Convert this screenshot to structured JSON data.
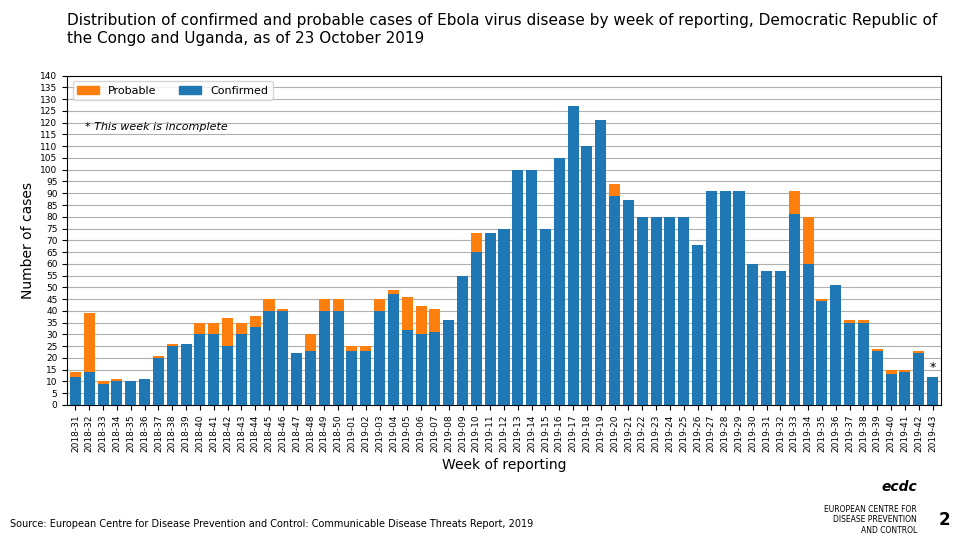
{
  "chart_data": {
    "type": "bar",
    "stacked": true,
    "title": "Distribution of confirmed and probable cases of Ebola virus disease by week of reporting, Democratic Republic of the Congo and Uganda, as of 23 October 2019",
    "x_label": "Week of reporting",
    "y_label": "Number of cases",
    "annotations": [
      "* This week is incomplete",
      "*",
      "Source: European Centre for Disease Prevention and Control: Communicable Disease Threats Report, 2019",
      "2",
      "ecdc",
      "EUROPEAN CENTRE FOR\nDISEASE PREVENTION\nAND CONTROL"
    ],
    "grid": true,
    "legend": "upper left",
    "ylim": [
      0,
      140
    ],
    "yticks": [
      0,
      5,
      10,
      15,
      20,
      25,
      30,
      35,
      40,
      45,
      50,
      55,
      60,
      65,
      70,
      75,
      80,
      85,
      90,
      95,
      100,
      105,
      110,
      115,
      120,
      125,
      130,
      135,
      140
    ],
    "categories": [
      "2018-31",
      "2018-32",
      "2018-33",
      "2018-34",
      "2018-35",
      "2018-36",
      "2018-37",
      "2018-38",
      "2018-39",
      "2018-40",
      "2018-41",
      "2018-42",
      "2018-43",
      "2018-44",
      "2018-45",
      "2018-46",
      "2018-47",
      "2018-48",
      "2018-49",
      "2018-50",
      "2019-01",
      "2019-02",
      "2019-03",
      "2019-04",
      "2019-05",
      "2019-06",
      "2019-07",
      "2019-08",
      "2019-09",
      "2019-10",
      "2019-11",
      "2019-12",
      "2019-13",
      "2019-14",
      "2019-15",
      "2019-16",
      "2019-17",
      "2019-18",
      "2019-19",
      "2019-20",
      "2019-21",
      "2019-22",
      "2019-23",
      "2019-24",
      "2019-25",
      "2019-26",
      "2019-27",
      "2019-28",
      "2019-29",
      "2019-30",
      "2019-31",
      "2019-32",
      "2019-33",
      "2019-34",
      "2019-35",
      "2019-36",
      "2019-37",
      "2019-38",
      "2019-39",
      "2019-40",
      "2019-41",
      "2019-42",
      "2019-43"
    ],
    "series": [
      {
        "name": "Confirmed",
        "values": [
          12,
          14,
          9,
          10,
          10,
          11,
          20,
          25,
          26,
          30,
          30,
          25,
          30,
          33,
          40,
          40,
          22,
          23,
          40,
          40,
          23,
          23,
          40,
          47,
          32,
          30,
          31,
          36,
          55,
          65,
          73,
          75,
          100,
          100,
          75,
          105,
          127,
          110,
          121,
          89,
          87,
          80,
          80,
          80,
          80,
          68,
          91,
          91,
          91,
          60,
          57,
          57,
          81,
          60,
          44,
          51,
          35,
          35,
          23,
          13,
          14,
          22,
          12
        ]
      },
      {
        "name": "Probable",
        "values": [
          2,
          25,
          1,
          1,
          0,
          0,
          1,
          1,
          0,
          5,
          5,
          12,
          5,
          5,
          5,
          1,
          0,
          7,
          5,
          5,
          2,
          2,
          5,
          2,
          14,
          12,
          10,
          0,
          0,
          8,
          0,
          0,
          0,
          0,
          0,
          0,
          0,
          0,
          0,
          5,
          0,
          0,
          0,
          0,
          0,
          0,
          0,
          0,
          0,
          0,
          0,
          0,
          10,
          20,
          1,
          0,
          1,
          1,
          1,
          2,
          1,
          1,
          0
        ]
      }
    ]
  }
}
